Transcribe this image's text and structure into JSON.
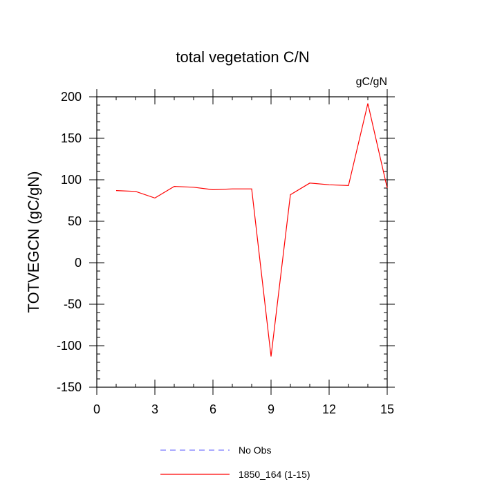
{
  "chart_data": {
    "type": "line",
    "title": "total vegetation C/N",
    "units_label": "gC/gN",
    "ylabel": "TOTVEGCN  (gC/gN)",
    "xlabel": "",
    "xlim": [
      0,
      15
    ],
    "ylim": [
      -150,
      200
    ],
    "x_ticks": [
      0,
      3,
      6,
      9,
      12,
      15
    ],
    "y_ticks": [
      -150,
      -100,
      -50,
      0,
      50,
      100,
      150,
      200
    ],
    "x_minor_step": 1,
    "y_minor_step": 10,
    "grid": false,
    "legend_position": "bottom-center",
    "series": [
      {
        "name": "No Obs",
        "style": "dashed",
        "color": "#7777ff",
        "x": [],
        "y": []
      },
      {
        "name": "1850_164 (1-15)",
        "style": "solid",
        "color": "#ff0000",
        "x": [
          1,
          2,
          3,
          4,
          5,
          6,
          7,
          8,
          9,
          10,
          11,
          12,
          13,
          14,
          15
        ],
        "y": [
          87,
          86,
          78,
          92,
          91,
          88,
          89,
          89,
          -113,
          82,
          96,
          94,
          93,
          192,
          90
        ]
      }
    ]
  }
}
